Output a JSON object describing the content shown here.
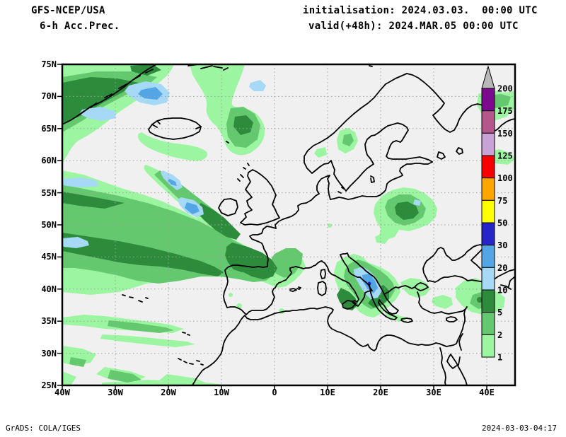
{
  "header": {
    "product_line1": "GFS-NCEP/USA",
    "product_line2": "6-h Acc.Prec.",
    "init_line": "initialisation: 2024.03.03.  00:00 UTC",
    "valid_line": "valid(+48h): 2024.MAR.05 00:00 UTC"
  },
  "footer": {
    "generator": "GrADS: COLA/IGES",
    "timestamp": "2024-03-03-04:17"
  },
  "axes": {
    "lat_labels": [
      "75N",
      "70N",
      "65N",
      "60N",
      "55N",
      "50N",
      "45N",
      "40N",
      "35N",
      "30N",
      "25N"
    ],
    "lon_labels": [
      "40W",
      "30W",
      "20W",
      "10W",
      "0",
      "10E",
      "20E",
      "30E",
      "40E"
    ]
  },
  "legend": {
    "values_top_to_bottom": [
      "200",
      "175",
      "150",
      "125",
      "100",
      "75",
      "50",
      "30",
      "20",
      "10",
      "5",
      "2",
      "1"
    ],
    "colors_top_to_bottom": [
      "#7c0a8e",
      "#b4578c",
      "#c9a3d8",
      "#f80000",
      "#ffa500",
      "#ffff00",
      "#2626c8",
      "#52a6e6",
      "#a6d9f6",
      "#2d8c3c",
      "#64c86e",
      "#9cf5a0"
    ],
    "overflow_arrow_color": "#b8b8b8"
  },
  "map": {
    "background": "#f0f0f0",
    "coastline_color": "#000000",
    "gridline_color": "#a0a0a0"
  },
  "chart_data": {
    "type": "filled-contour-map",
    "variable": "6-h Acc.Prec.",
    "model": "GFS-NCEP/USA",
    "levels_mm": [
      1,
      2,
      5,
      10,
      20,
      30,
      50,
      75,
      100,
      125,
      150,
      175,
      200
    ],
    "lat_range": [
      "25N",
      "75N"
    ],
    "lon_range": [
      "40W",
      "40E"
    ],
    "max_band_depicted_mm": "20-30"
  }
}
